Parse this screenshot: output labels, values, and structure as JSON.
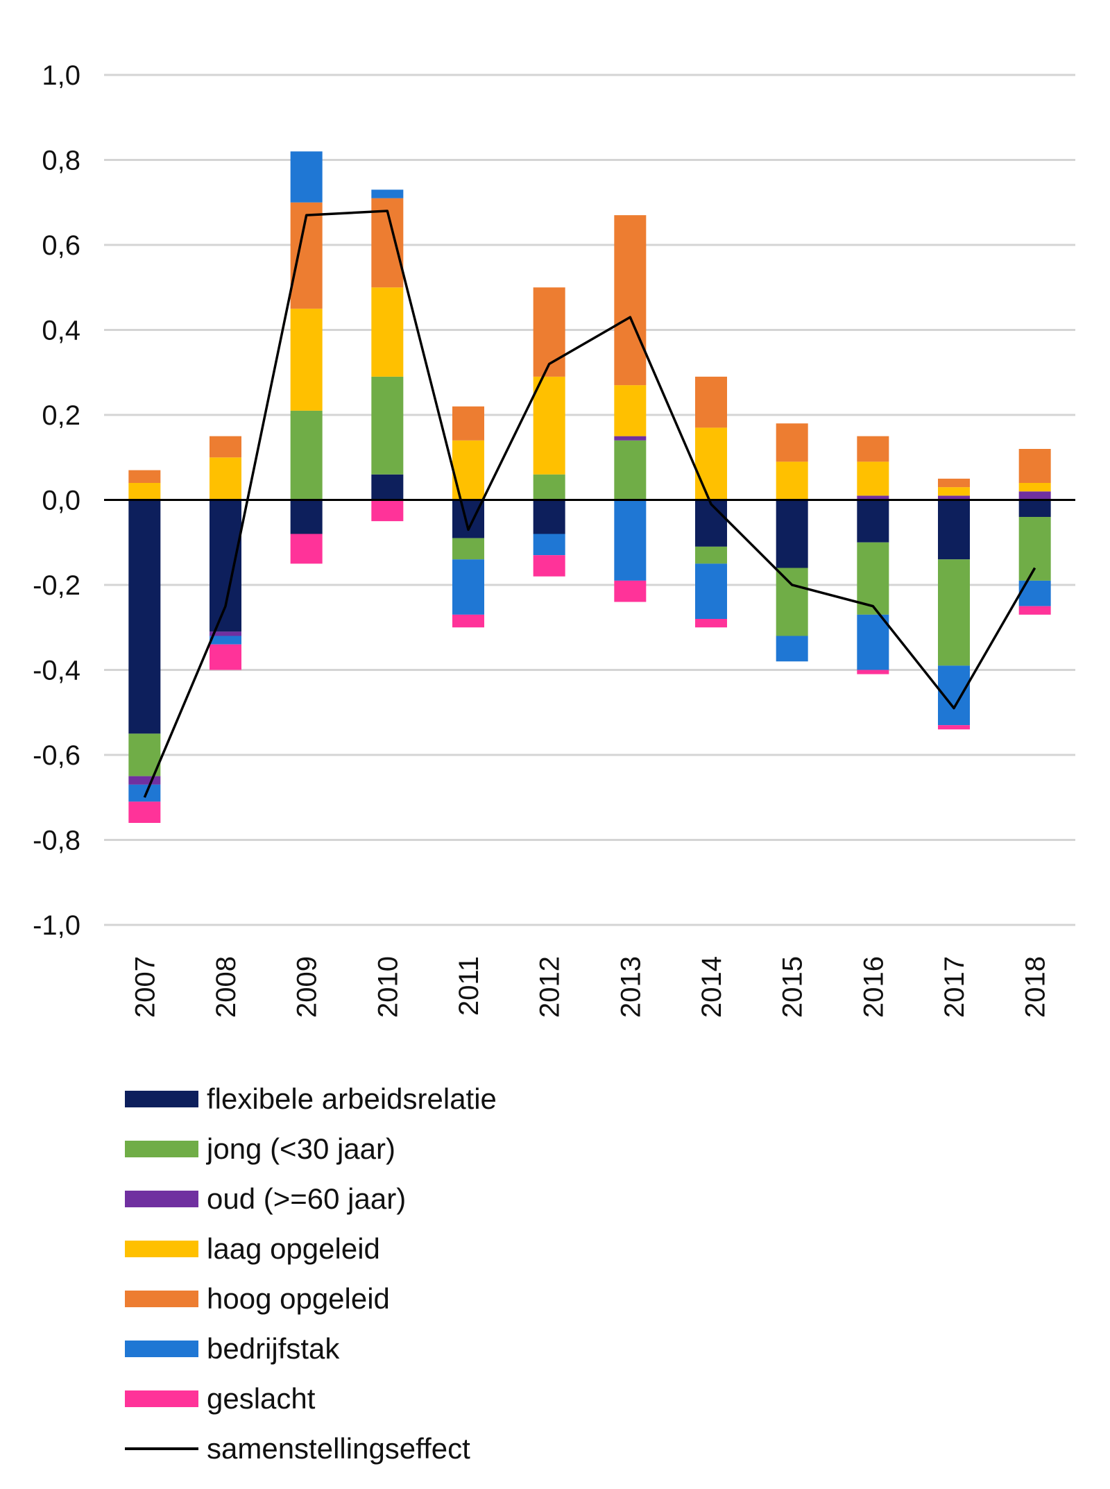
{
  "chart_data": {
    "type": "bar",
    "stacked": true,
    "categories": [
      "2007",
      "2008",
      "2009",
      "2010",
      "2011",
      "2012",
      "2013",
      "2014",
      "2015",
      "2016",
      "2017",
      "2018"
    ],
    "yticks": [
      "1,0",
      "0,8",
      "0,6",
      "0,4",
      "0,2",
      "0,0",
      "-0,2",
      "-0,4",
      "-0,6",
      "-0,8",
      "-1,0"
    ],
    "ylim": [
      -1.0,
      1.0
    ],
    "grid": true,
    "legend_position": "bottom-left",
    "series": [
      {
        "name": "flexibele arbeidsrelatie",
        "color": "#0d1f5c",
        "values": [
          -0.55,
          -0.31,
          -0.08,
          0.06,
          -0.09,
          -0.08,
          0.0,
          -0.11,
          -0.16,
          -0.1,
          -0.14,
          -0.04
        ]
      },
      {
        "name": "jong (<30 jaar)",
        "color": "#70ad47",
        "values": [
          -0.1,
          0.0,
          0.21,
          0.23,
          -0.05,
          0.06,
          0.14,
          -0.04,
          -0.16,
          -0.17,
          -0.25,
          -0.15
        ]
      },
      {
        "name": "oud (>=60 jaar)",
        "color": "#7030a0",
        "values": [
          -0.02,
          -0.01,
          0.0,
          0.0,
          0.0,
          0.0,
          0.01,
          0.0,
          0.0,
          0.01,
          0.01,
          0.02
        ]
      },
      {
        "name": "laag opgeleid",
        "color": "#ffc000",
        "values": [
          0.04,
          0.1,
          0.24,
          0.21,
          0.14,
          0.23,
          0.12,
          0.17,
          0.09,
          0.08,
          0.02,
          0.02
        ]
      },
      {
        "name": "hoog opgeleid",
        "color": "#ed7d31",
        "values": [
          0.03,
          0.05,
          0.25,
          0.21,
          0.08,
          0.21,
          0.4,
          0.12,
          0.09,
          0.06,
          0.02,
          0.08
        ]
      },
      {
        "name": "bedrijfstak",
        "color": "#1f77d4",
        "values": [
          -0.04,
          -0.02,
          0.12,
          0.02,
          -0.13,
          -0.05,
          -0.19,
          -0.13,
          -0.06,
          -0.13,
          -0.14,
          -0.06
        ]
      },
      {
        "name": "geslacht",
        "color": "#ff3399",
        "values": [
          -0.05,
          -0.06,
          -0.07,
          -0.05,
          -0.03,
          -0.05,
          -0.05,
          -0.02,
          0.0,
          -0.01,
          -0.01,
          -0.02
        ]
      }
    ],
    "line": {
      "name": "samenstellingseffect",
      "color": "#000000",
      "values": [
        -0.7,
        -0.25,
        0.67,
        0.68,
        -0.07,
        0.32,
        0.43,
        -0.01,
        -0.2,
        -0.25,
        -0.49,
        -0.16
      ]
    }
  }
}
